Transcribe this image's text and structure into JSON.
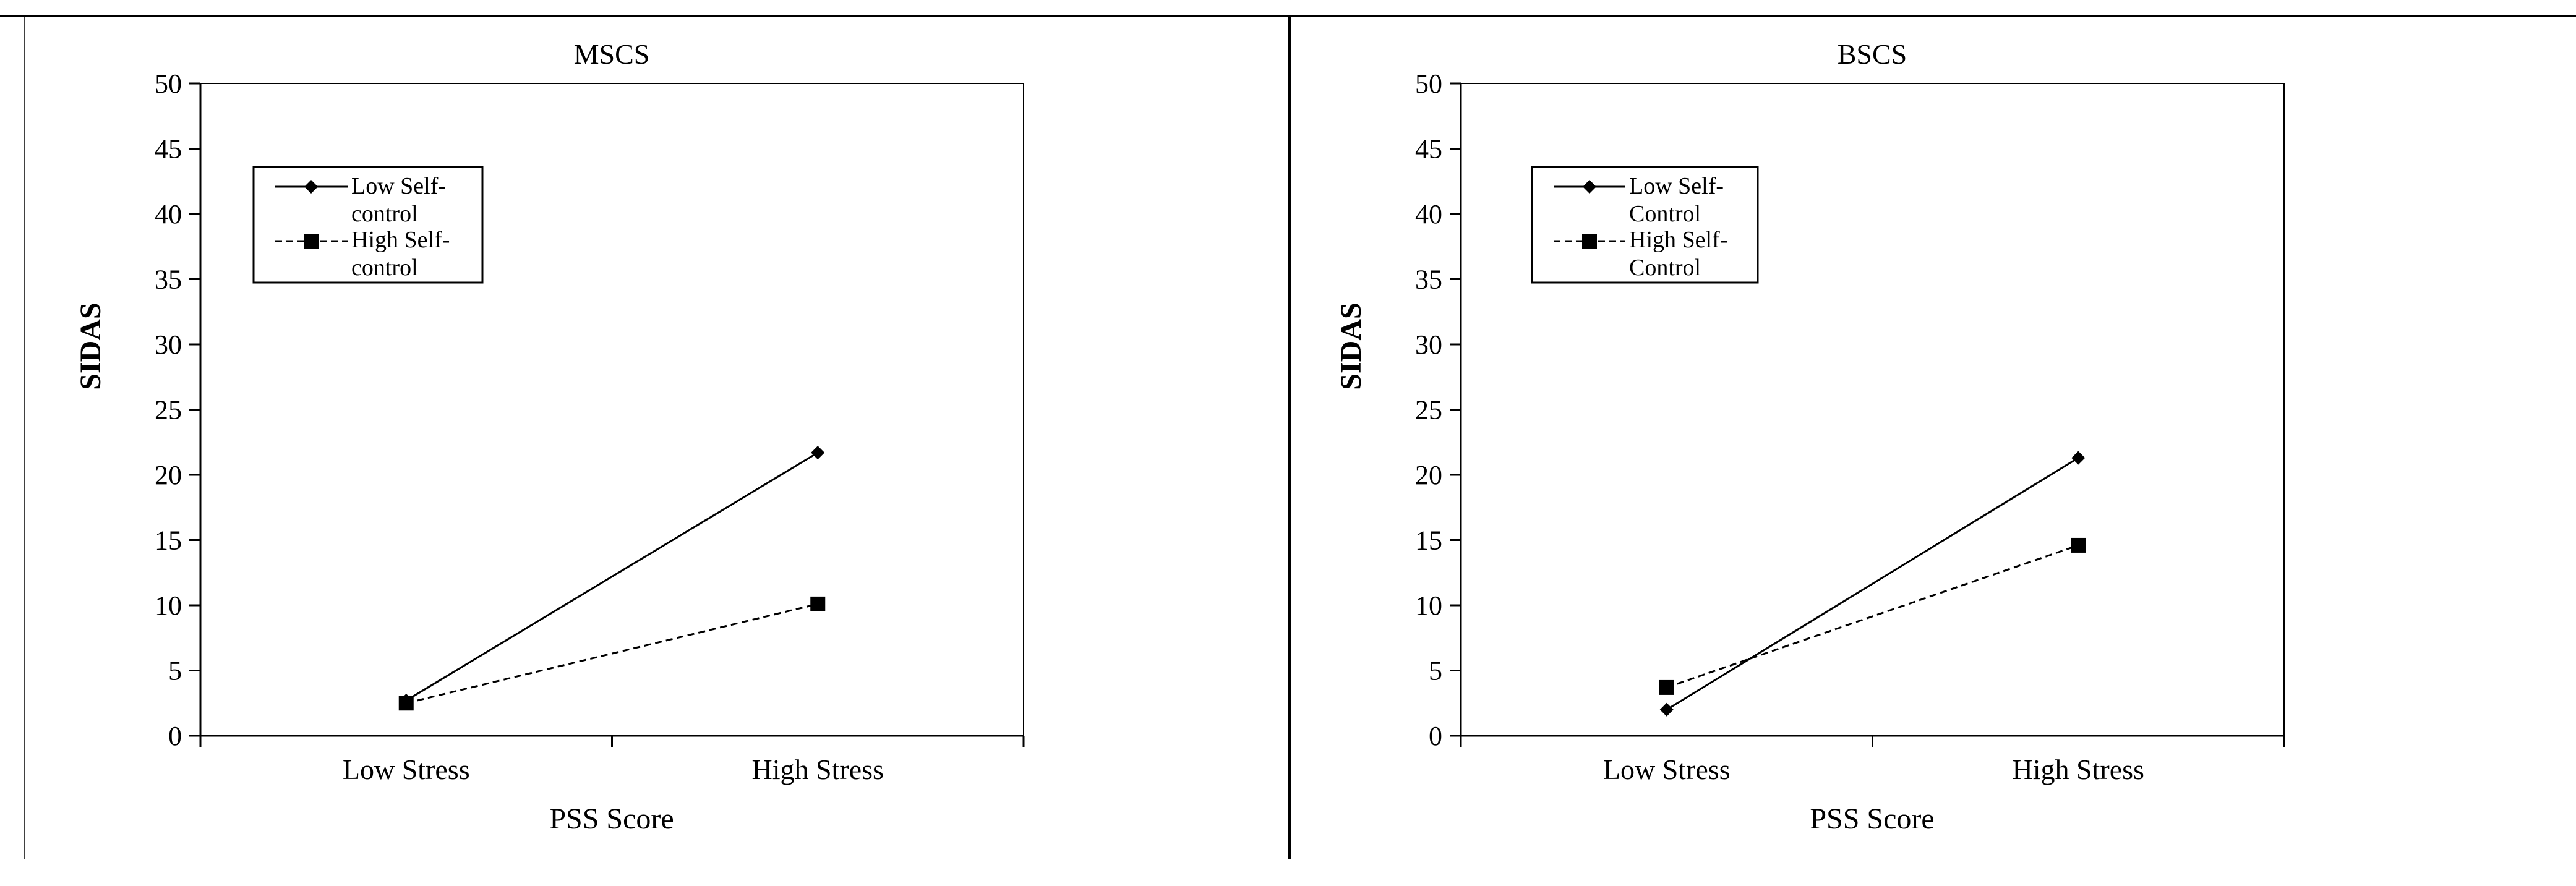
{
  "figure": {
    "background": "#ffffff",
    "line_color": "#000000"
  },
  "chart_data": [
    {
      "type": "line",
      "title": "MSCS",
      "xlabel": "PSS Score",
      "ylabel": "SIDAS",
      "categories": [
        "Low Stress",
        "High Stress"
      ],
      "ylim": [
        0,
        50
      ],
      "yticks": [
        "0",
        "5",
        "10",
        "15",
        "20",
        "25",
        "30",
        "35",
        "40",
        "45",
        "50"
      ],
      "grid": false,
      "legend_position": "top-left",
      "series": [
        {
          "name": "Low Self-control",
          "legend_lines": [
            "Low Self-",
            "control"
          ],
          "values": [
            2.7,
            21.7
          ],
          "line_style": "solid",
          "marker": "diamond"
        },
        {
          "name": "High Self-control",
          "legend_lines": [
            "High Self-",
            "control"
          ],
          "values": [
            2.5,
            10.1
          ],
          "line_style": "dashed",
          "marker": "square"
        }
      ]
    },
    {
      "type": "line",
      "title": "BSCS",
      "xlabel": "PSS Score",
      "ylabel": "SIDAS",
      "categories": [
        "Low Stress",
        "High Stress"
      ],
      "ylim": [
        0,
        50
      ],
      "yticks": [
        "0",
        "5",
        "10",
        "15",
        "20",
        "25",
        "30",
        "35",
        "40",
        "45",
        "50"
      ],
      "grid": false,
      "legend_position": "top-left",
      "series": [
        {
          "name": "Low Self-Control",
          "legend_lines": [
            "Low Self-",
            "Control"
          ],
          "values": [
            2.0,
            21.3
          ],
          "line_style": "solid",
          "marker": "diamond"
        },
        {
          "name": "High Self-Control",
          "legend_lines": [
            "High Self-",
            "Control"
          ],
          "values": [
            3.7,
            14.6
          ],
          "line_style": "dashed",
          "marker": "square"
        }
      ]
    }
  ]
}
